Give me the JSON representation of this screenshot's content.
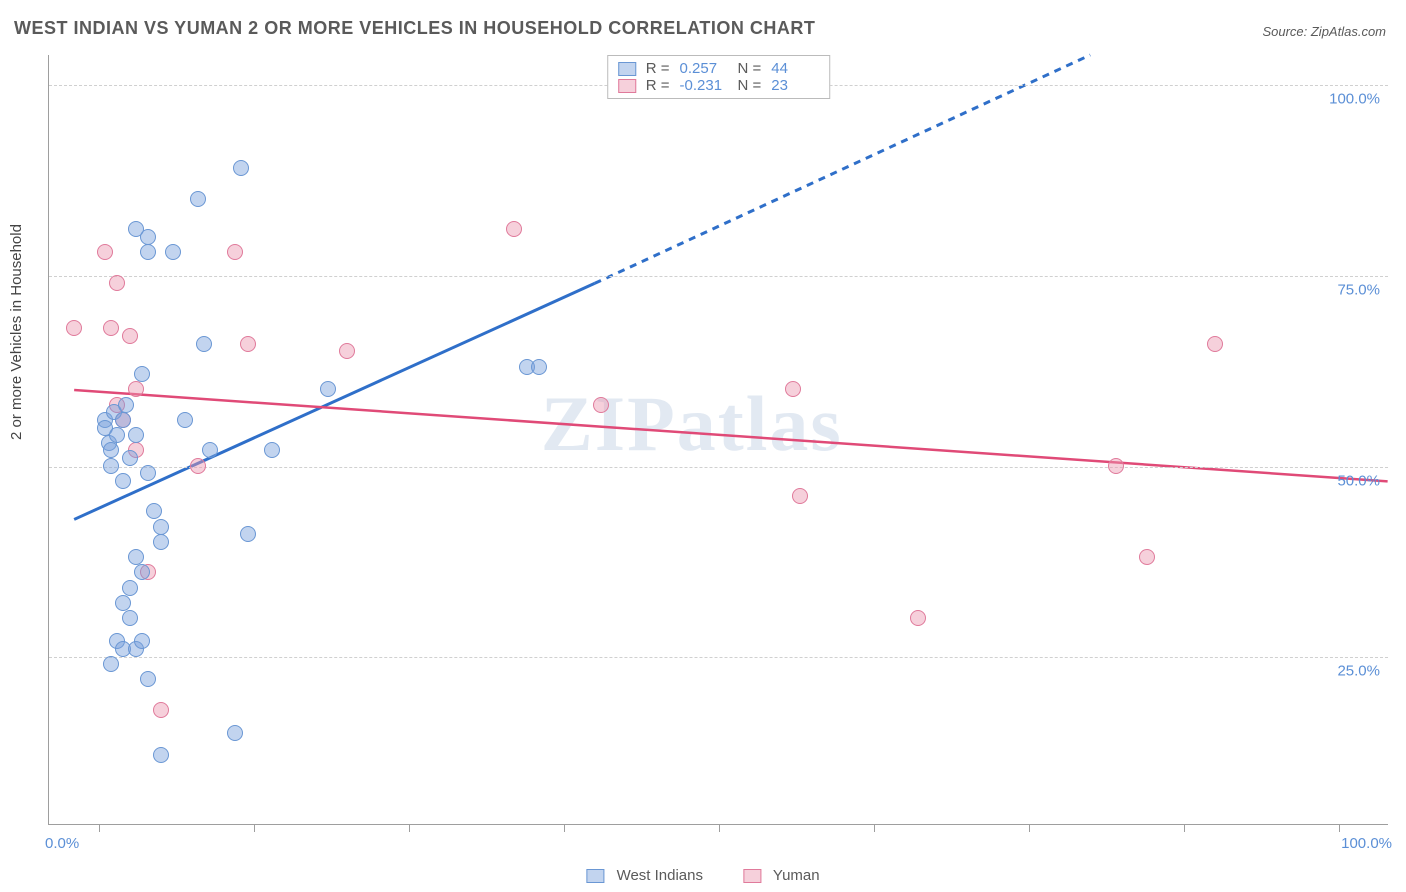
{
  "title": "WEST INDIAN VS YUMAN 2 OR MORE VEHICLES IN HOUSEHOLD CORRELATION CHART",
  "source": "Source: ZipAtlas.com",
  "watermark": "ZIPatlas",
  "axes": {
    "y_title": "2 or more Vehicles in Household",
    "y_ticks": [
      {
        "v": 25,
        "label": "25.0%"
      },
      {
        "v": 50,
        "label": "50.0%"
      },
      {
        "v": 75,
        "label": "75.0%"
      },
      {
        "v": 100,
        "label": "100.0%"
      }
    ],
    "x_left_label": "0.0%",
    "x_right_label": "100.0%",
    "x_min": -4,
    "x_max": 104,
    "y_min": 3,
    "y_max": 104,
    "x_tick_positions": [
      0,
      12.5,
      25,
      37.5,
      50,
      62.5,
      75,
      87.5,
      100
    ],
    "grid_color": "#d0d0d0",
    "axis_color": "#9e9e9e",
    "label_color": "#5b8fd6"
  },
  "series": {
    "west_indians": {
      "label": "West Indians",
      "fill": "rgba(120,160,220,0.45)",
      "stroke": "#6a97d4",
      "R": "0.257",
      "N": "44",
      "trend": {
        "x1": -2,
        "y1": 43,
        "x2": 40,
        "y2": 74,
        "x3": 80,
        "y3": 104,
        "color": "#2f6fc9",
        "width": 3
      },
      "points": [
        {
          "x": 0.5,
          "y": 56
        },
        {
          "x": 0.5,
          "y": 55
        },
        {
          "x": 0.8,
          "y": 53
        },
        {
          "x": 1.2,
          "y": 57
        },
        {
          "x": 1.0,
          "y": 52
        },
        {
          "x": 1.5,
          "y": 54
        },
        {
          "x": 1.0,
          "y": 50
        },
        {
          "x": 2.0,
          "y": 56
        },
        {
          "x": 2.2,
          "y": 58
        },
        {
          "x": 2.5,
          "y": 51
        },
        {
          "x": 2.0,
          "y": 48
        },
        {
          "x": 3.0,
          "y": 54
        },
        {
          "x": 3.5,
          "y": 62
        },
        {
          "x": 4.0,
          "y": 49
        },
        {
          "x": 4.5,
          "y": 44
        },
        {
          "x": 5.0,
          "y": 42
        },
        {
          "x": 5.0,
          "y": 40
        },
        {
          "x": 3.0,
          "y": 38
        },
        {
          "x": 3.5,
          "y": 36
        },
        {
          "x": 2.5,
          "y": 34
        },
        {
          "x": 2.0,
          "y": 32
        },
        {
          "x": 2.5,
          "y": 30
        },
        {
          "x": 1.5,
          "y": 27
        },
        {
          "x": 2.0,
          "y": 26
        },
        {
          "x": 3.0,
          "y": 26
        },
        {
          "x": 3.5,
          "y": 27
        },
        {
          "x": 1.0,
          "y": 24
        },
        {
          "x": 4.0,
          "y": 22
        },
        {
          "x": 11.0,
          "y": 15
        },
        {
          "x": 5.0,
          "y": 12
        },
        {
          "x": 4.0,
          "y": 78
        },
        {
          "x": 4.0,
          "y": 80
        },
        {
          "x": 3.0,
          "y": 81
        },
        {
          "x": 8.0,
          "y": 85
        },
        {
          "x": 11.5,
          "y": 89
        },
        {
          "x": 6.0,
          "y": 78
        },
        {
          "x": 8.5,
          "y": 66
        },
        {
          "x": 9.0,
          "y": 52
        },
        {
          "x": 12.0,
          "y": 41
        },
        {
          "x": 18.5,
          "y": 60
        },
        {
          "x": 34.5,
          "y": 63
        },
        {
          "x": 35.5,
          "y": 63
        },
        {
          "x": 14.0,
          "y": 52
        },
        {
          "x": 7.0,
          "y": 56
        }
      ]
    },
    "yuman": {
      "label": "Yuman",
      "fill": "rgba(235,150,175,0.45)",
      "stroke": "#e07a9b",
      "R": "-0.231",
      "N": "23",
      "trend": {
        "x1": -2,
        "y1": 60,
        "x2": 104,
        "y2": 48,
        "color": "#e04a77",
        "width": 2.5
      },
      "points": [
        {
          "x": 0.5,
          "y": 78
        },
        {
          "x": 1.5,
          "y": 74
        },
        {
          "x": 1.0,
          "y": 68
        },
        {
          "x": 2.5,
          "y": 67
        },
        {
          "x": 11.0,
          "y": 78
        },
        {
          "x": 12.0,
          "y": 66
        },
        {
          "x": 20.0,
          "y": 65
        },
        {
          "x": 33.5,
          "y": 81
        },
        {
          "x": 40.5,
          "y": 58
        },
        {
          "x": 56.0,
          "y": 60
        },
        {
          "x": 56.5,
          "y": 46
        },
        {
          "x": 66.0,
          "y": 30
        },
        {
          "x": 82.0,
          "y": 50
        },
        {
          "x": 84.5,
          "y": 38
        },
        {
          "x": 90.0,
          "y": 66
        },
        {
          "x": 5.0,
          "y": 18
        },
        {
          "x": 8.0,
          "y": 50
        },
        {
          "x": 3.0,
          "y": 60
        },
        {
          "x": 2.0,
          "y": 56
        },
        {
          "x": 4.0,
          "y": 36
        },
        {
          "x": 3.0,
          "y": 52
        },
        {
          "x": 1.5,
          "y": 58
        },
        {
          "x": -2.0,
          "y": 68
        }
      ]
    }
  },
  "legend_bottom": [
    {
      "label": "West Indians",
      "fill": "rgba(120,160,220,0.45)",
      "stroke": "#6a97d4"
    },
    {
      "label": "Yuman",
      "fill": "rgba(235,150,175,0.45)",
      "stroke": "#e07a9b"
    }
  ]
}
